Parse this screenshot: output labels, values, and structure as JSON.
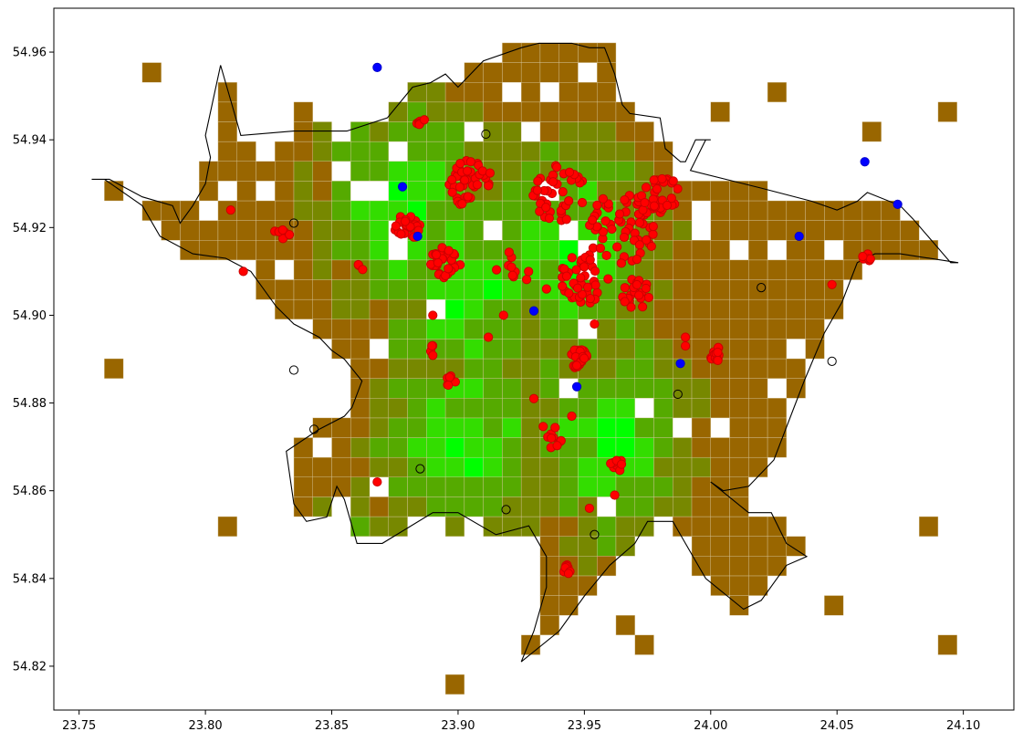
{
  "chart_data": {
    "type": "scatter",
    "title": "",
    "xlabel": "",
    "ylabel": "",
    "xlim": [
      23.74,
      24.12
    ],
    "ylim": [
      54.81,
      54.97
    ],
    "x_ticks": [
      "23.75",
      "23.80",
      "23.85",
      "23.90",
      "23.95",
      "24.00",
      "24.05",
      "24.10"
    ],
    "y_ticks": [
      "54.82",
      "54.84",
      "54.86",
      "54.88",
      "54.90",
      "54.92",
      "54.94",
      "54.96"
    ],
    "grid": false,
    "grid_cells": {
      "lon0": 23.7525,
      "lat0": 54.8136,
      "dlon": 0.0075,
      "dlat": 0.0045,
      "palette": [
        "#00ff00",
        "#33dd00",
        "#55aa00",
        "#778800",
        "#996600"
      ],
      "rows": [
        "....................................",
        "......................................",
        "..........444444.333...444...........",
        "..........433334...........444.......",
        "..........43333...443333...44433..",
        "..........44333444433333...44443...",
        "...........4333444334443....444444.",
        "...........43334.444433344444444...",
        "...........443334.4344444..444444.",
        "...........43334.433344444444444444444444",
        "...........442......44444444444444444444",
        "............23333334433334444444444",
        "...........2332333333333334444444444",
        "............333333.......44444444444",
        "............3333.....................",
        "........................................",
        "........................................",
        "........................................",
        "........................................",
        "........................................",
        "........................................",
        "........................................",
        "........................................",
        "........................................",
        "........................................",
        "........................................",
        "........................................",
        "........................................",
        "........................................",
        "........................................",
        "........................................",
        "........................................",
        "........................................",
        "........................................",
        "........................................",
        "........................................"
      ]
    },
    "red_clusters": [
      {
        "x": 23.885,
        "y": 54.944,
        "n": 6,
        "r": 0.002
      },
      {
        "x": 23.905,
        "y": 54.93,
        "n": 40,
        "r": 0.009
      },
      {
        "x": 23.88,
        "y": 54.92,
        "n": 25,
        "r": 0.005
      },
      {
        "x": 23.895,
        "y": 54.912,
        "n": 30,
        "r": 0.006
      },
      {
        "x": 23.94,
        "y": 54.928,
        "n": 40,
        "r": 0.012
      },
      {
        "x": 23.965,
        "y": 54.92,
        "n": 60,
        "r": 0.014
      },
      {
        "x": 23.98,
        "y": 54.928,
        "n": 35,
        "r": 0.008
      },
      {
        "x": 23.95,
        "y": 54.908,
        "n": 40,
        "r": 0.01
      },
      {
        "x": 23.97,
        "y": 54.905,
        "n": 20,
        "r": 0.006
      },
      {
        "x": 23.948,
        "y": 54.89,
        "n": 25,
        "r": 0.004
      },
      {
        "x": 23.897,
        "y": 54.885,
        "n": 8,
        "r": 0.002
      },
      {
        "x": 23.89,
        "y": 54.892,
        "n": 4,
        "r": 0.002
      },
      {
        "x": 24.002,
        "y": 54.891,
        "n": 18,
        "r": 0.003
      },
      {
        "x": 23.943,
        "y": 54.842,
        "n": 8,
        "r": 0.002
      },
      {
        "x": 23.935,
        "y": 54.872,
        "n": 10,
        "r": 0.006
      },
      {
        "x": 23.962,
        "y": 54.866,
        "n": 8,
        "r": 0.004
      },
      {
        "x": 24.062,
        "y": 54.913,
        "n": 6,
        "r": 0.002
      },
      {
        "x": 23.92,
        "y": 54.91,
        "n": 10,
        "r": 0.008
      },
      {
        "x": 23.83,
        "y": 54.918,
        "n": 6,
        "r": 0.004
      },
      {
        "x": 23.86,
        "y": 54.91,
        "n": 3,
        "r": 0.003
      }
    ],
    "red_points": [
      {
        "x": 23.81,
        "y": 54.924
      },
      {
        "x": 23.815,
        "y": 54.91
      },
      {
        "x": 23.868,
        "y": 54.862
      },
      {
        "x": 24.048,
        "y": 54.907
      },
      {
        "x": 23.99,
        "y": 54.895
      },
      {
        "x": 23.99,
        "y": 54.893
      },
      {
        "x": 23.954,
        "y": 54.898
      },
      {
        "x": 23.952,
        "y": 54.856
      },
      {
        "x": 23.962,
        "y": 54.859
      },
      {
        "x": 23.945,
        "y": 54.877
      },
      {
        "x": 23.93,
        "y": 54.881
      },
      {
        "x": 23.912,
        "y": 54.895
      },
      {
        "x": 23.89,
        "y": 54.9
      },
      {
        "x": 23.918,
        "y": 54.9
      },
      {
        "x": 23.935,
        "y": 54.906
      }
    ],
    "blue_points": [
      {
        "x": 23.868,
        "y": 54.9565
      },
      {
        "x": 23.878,
        "y": 54.9293
      },
      {
        "x": 23.884,
        "y": 54.918
      },
      {
        "x": 23.93,
        "y": 54.901
      },
      {
        "x": 23.947,
        "y": 54.8837
      },
      {
        "x": 23.988,
        "y": 54.889
      },
      {
        "x": 24.035,
        "y": 54.918
      },
      {
        "x": 24.061,
        "y": 54.935
      },
      {
        "x": 24.074,
        "y": 54.9253
      }
    ],
    "open_points": [
      {
        "x": 23.911,
        "y": 54.9413
      },
      {
        "x": 23.835,
        "y": 54.921
      },
      {
        "x": 24.02,
        "y": 54.9063
      },
      {
        "x": 23.835,
        "y": 54.8875
      },
      {
        "x": 24.048,
        "y": 54.8895
      },
      {
        "x": 23.987,
        "y": 54.882
      },
      {
        "x": 23.843,
        "y": 54.874
      },
      {
        "x": 23.885,
        "y": 54.865
      },
      {
        "x": 23.919,
        "y": 54.8557
      },
      {
        "x": 23.954,
        "y": 54.85
      }
    ],
    "boundary": [
      [
        23.755,
        54.931
      ],
      [
        23.762,
        54.931
      ],
      [
        23.775,
        54.927
      ],
      [
        23.787,
        54.925
      ],
      [
        23.79,
        54.921
      ],
      [
        23.795,
        54.925
      ],
      [
        23.8,
        54.93
      ],
      [
        23.802,
        54.936
      ],
      [
        23.8,
        54.941
      ],
      [
        23.806,
        54.957
      ],
      [
        23.814,
        54.941
      ],
      [
        23.835,
        54.942
      ],
      [
        23.856,
        54.942
      ],
      [
        23.872,
        54.945
      ],
      [
        23.882,
        54.952
      ],
      [
        23.889,
        54.953
      ],
      [
        23.895,
        54.955
      ],
      [
        23.9,
        54.952
      ],
      [
        23.91,
        54.958
      ],
      [
        23.925,
        54.961
      ],
      [
        23.932,
        54.962
      ],
      [
        23.945,
        54.962
      ],
      [
        23.952,
        54.961
      ],
      [
        23.958,
        54.961
      ],
      [
        23.962,
        54.955
      ],
      [
        23.965,
        54.948
      ],
      [
        23.968,
        54.946
      ],
      [
        23.98,
        54.945
      ],
      [
        23.982,
        54.938
      ],
      [
        23.988,
        54.935
      ],
      [
        23.99,
        54.935
      ],
      [
        23.994,
        54.94
      ],
      [
        24.0,
        54.94
      ],
      [
        23.998,
        54.94
      ],
      [
        23.992,
        54.933
      ],
      [
        24.02,
        54.929
      ],
      [
        24.04,
        54.926
      ],
      [
        24.05,
        54.924
      ],
      [
        24.058,
        54.926
      ],
      [
        24.062,
        54.928
      ],
      [
        24.075,
        54.925
      ],
      [
        24.08,
        54.922
      ],
      [
        24.095,
        54.912
      ],
      [
        24.098,
        54.912
      ],
      [
        24.075,
        54.914
      ],
      [
        24.065,
        54.914
      ],
      [
        24.058,
        54.912
      ],
      [
        24.052,
        54.903
      ],
      [
        24.045,
        54.896
      ],
      [
        24.037,
        54.885
      ],
      [
        24.025,
        54.867
      ],
      [
        24.015,
        54.861
      ],
      [
        24.005,
        54.86
      ],
      [
        24.0,
        54.862
      ],
      [
        24.015,
        54.855
      ],
      [
        24.024,
        54.855
      ],
      [
        24.03,
        54.848
      ],
      [
        24.038,
        54.845
      ],
      [
        24.03,
        54.843
      ],
      [
        24.02,
        54.835
      ],
      [
        24.013,
        54.833
      ],
      [
        23.998,
        54.84
      ],
      [
        23.99,
        54.848
      ],
      [
        23.985,
        54.853
      ],
      [
        23.975,
        54.853
      ],
      [
        23.97,
        54.848
      ],
      [
        23.96,
        54.843
      ],
      [
        23.95,
        54.836
      ],
      [
        23.94,
        54.828
      ],
      [
        23.925,
        54.821
      ],
      [
        23.93,
        54.828
      ],
      [
        23.935,
        54.838
      ],
      [
        23.935,
        54.845
      ],
      [
        23.928,
        54.852
      ],
      [
        23.915,
        54.85
      ],
      [
        23.9,
        54.855
      ],
      [
        23.89,
        54.855
      ],
      [
        23.87,
        54.848
      ],
      [
        23.86,
        54.848
      ],
      [
        23.855,
        54.858
      ],
      [
        23.852,
        54.861
      ],
      [
        23.848,
        54.854
      ],
      [
        23.84,
        54.853
      ],
      [
        23.835,
        54.857
      ],
      [
        23.832,
        54.869
      ],
      [
        23.845,
        54.874
      ],
      [
        23.855,
        54.877
      ],
      [
        23.858,
        54.879
      ],
      [
        23.862,
        54.885
      ],
      [
        23.855,
        54.89
      ],
      [
        23.85,
        54.892
      ],
      [
        23.845,
        54.895
      ],
      [
        23.835,
        54.898
      ],
      [
        23.828,
        54.902
      ],
      [
        23.818,
        54.91
      ],
      [
        23.808,
        54.913
      ],
      [
        23.795,
        54.914
      ],
      [
        23.782,
        54.918
      ],
      [
        23.775,
        54.925
      ],
      [
        23.77,
        54.927
      ],
      [
        23.76,
        54.931
      ]
    ]
  }
}
